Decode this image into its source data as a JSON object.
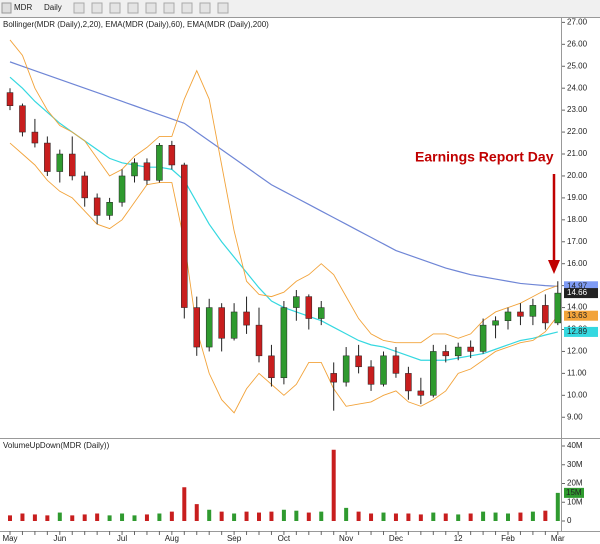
{
  "toolbar": {
    "symbol": "MDR",
    "interval": "Daily"
  },
  "chart_data": [
    {
      "type": "candlestick",
      "title": "Bollinger(MDR (Daily),2,20), EMA(MDR (Daily),60), EMA(MDR (Daily),200)",
      "annotation": "Earnings Report Day",
      "up_color": "#2f9a2f",
      "down_color": "#c81e1e",
      "open": [
        23.8,
        23.2,
        22.0,
        21.5,
        20.2,
        21.0,
        20.0,
        19.0,
        18.2,
        18.8,
        20.0,
        20.6,
        19.8,
        21.4,
        20.5,
        14.0,
        12.2,
        14.0,
        12.6,
        13.8,
        13.2,
        11.8,
        10.8,
        14.0,
        14.5,
        13.5,
        11.0,
        10.6,
        11.8,
        11.3,
        10.5,
        11.8,
        11.0,
        10.2,
        10.0,
        12.0,
        11.8,
        12.2,
        12.0,
        13.2,
        13.4,
        13.8,
        13.6,
        14.1,
        13.3
      ],
      "high": [
        24.0,
        23.3,
        22.6,
        21.8,
        21.2,
        21.8,
        20.2,
        19.2,
        19.0,
        20.3,
        20.8,
        20.8,
        21.5,
        21.6,
        20.6,
        14.5,
        14.4,
        14.2,
        14.2,
        14.5,
        14.0,
        12.3,
        14.3,
        14.8,
        14.6,
        14.3,
        11.5,
        12.2,
        12.3,
        11.6,
        12.0,
        12.2,
        11.3,
        10.8,
        12.3,
        12.3,
        12.4,
        12.5,
        13.5,
        13.6,
        14.0,
        14.2,
        14.4,
        14.6,
        15.2
      ],
      "low": [
        23.0,
        21.8,
        21.3,
        20.0,
        19.7,
        19.8,
        18.6,
        17.8,
        18.0,
        18.6,
        19.7,
        19.6,
        19.7,
        20.3,
        13.5,
        11.8,
        12.0,
        12.0,
        12.5,
        12.8,
        11.5,
        10.4,
        10.5,
        13.4,
        13.0,
        13.2,
        9.3,
        10.4,
        11.0,
        10.2,
        10.4,
        10.8,
        9.8,
        9.6,
        9.9,
        11.5,
        11.6,
        11.7,
        11.9,
        12.6,
        13.0,
        13.2,
        13.2,
        13.0,
        13.2
      ],
      "close": [
        23.2,
        22.0,
        21.5,
        20.2,
        21.0,
        20.0,
        19.0,
        18.2,
        18.8,
        20.0,
        20.6,
        19.8,
        21.4,
        20.5,
        14.0,
        12.2,
        14.0,
        12.6,
        13.8,
        13.2,
        11.8,
        10.8,
        14.0,
        14.5,
        13.5,
        14.0,
        10.6,
        11.8,
        11.3,
        10.5,
        11.8,
        11.0,
        10.2,
        10.0,
        12.0,
        11.8,
        12.2,
        12.0,
        13.2,
        13.4,
        13.8,
        13.6,
        14.1,
        13.3,
        14.66
      ],
      "series": [
        {
          "name": "EMA 200",
          "color": "#6f86d6",
          "values": [
            25.2,
            25.0,
            24.8,
            24.6,
            24.4,
            24.2,
            24.0,
            23.8,
            23.6,
            23.4,
            23.2,
            23.0,
            22.8,
            22.6,
            22.4,
            22.0,
            21.6,
            21.2,
            20.8,
            20.4,
            20.0,
            19.6,
            19.3,
            19.0,
            18.7,
            18.4,
            18.1,
            17.8,
            17.5,
            17.2,
            16.9,
            16.6,
            16.4,
            16.2,
            16.0,
            15.8,
            15.65,
            15.5,
            15.4,
            15.3,
            15.2,
            15.1,
            15.05,
            15.0,
            14.97
          ]
        },
        {
          "name": "EMA 60",
          "color": "#35d8e0",
          "values": [
            24.5,
            24.0,
            23.4,
            22.9,
            22.4,
            22.0,
            21.6,
            21.2,
            20.8,
            20.6,
            20.5,
            20.4,
            20.4,
            20.3,
            19.8,
            18.8,
            17.8,
            17.0,
            16.3,
            15.6,
            14.9,
            14.3,
            14.0,
            13.8,
            13.6,
            13.4,
            13.1,
            12.8,
            12.5,
            12.3,
            12.2,
            12.0,
            11.8,
            11.6,
            11.6,
            11.6,
            11.7,
            11.8,
            11.9,
            12.1,
            12.3,
            12.5,
            12.6,
            12.75,
            12.89
          ]
        },
        {
          "name": "Bollinger upper",
          "color": "#f2a33a",
          "values": [
            26.2,
            25.5,
            24.0,
            23.0,
            22.3,
            22.0,
            21.6,
            20.8,
            20.0,
            20.3,
            20.9,
            21.3,
            21.8,
            21.8,
            23.5,
            24.8,
            23.5,
            20.5,
            17.5,
            15.2,
            14.6,
            14.5,
            14.7,
            15.2,
            15.5,
            16.0,
            15.5,
            14.5,
            13.5,
            12.8,
            12.5,
            12.4,
            12.4,
            12.4,
            12.8,
            12.8,
            12.6,
            12.8,
            13.4,
            13.8,
            14.0,
            14.2,
            14.5,
            14.8,
            15.0
          ]
        },
        {
          "name": "Bollinger lower",
          "color": "#f2a33a",
          "values": [
            21.5,
            21.0,
            20.5,
            19.8,
            19.3,
            19.0,
            18.4,
            17.8,
            17.6,
            18.0,
            18.8,
            19.6,
            19.7,
            19.7,
            17.0,
            13.0,
            11.0,
            9.8,
            9.2,
            10.3,
            11.0,
            10.5,
            10.0,
            10.5,
            11.5,
            11.5,
            10.3,
            9.5,
            9.6,
            9.7,
            10.0,
            10.2,
            9.7,
            9.5,
            9.8,
            10.2,
            11.0,
            11.2,
            11.6,
            12.0,
            12.2,
            12.4,
            12.5,
            12.9,
            13.63
          ]
        }
      ],
      "ylim": [
        8.1,
        27.2
      ],
      "yticks": [
        {
          "value": 9,
          "label": "9.00"
        },
        {
          "value": 10,
          "label": "10.00"
        },
        {
          "value": 11,
          "label": "11.00"
        },
        {
          "value": 12,
          "label": "12.00"
        },
        {
          "value": 13,
          "label": "13.00"
        },
        {
          "value": 14,
          "label": "14.00"
        },
        {
          "value": 15,
          "label": "15.00"
        },
        {
          "value": 16,
          "label": "16.00"
        },
        {
          "value": 17,
          "label": "17.00"
        },
        {
          "value": 18,
          "label": "18.00"
        },
        {
          "value": 19,
          "label": "19.00"
        },
        {
          "value": 20,
          "label": "20.00"
        },
        {
          "value": 21,
          "label": "21.00"
        },
        {
          "value": 22,
          "label": "22.00"
        },
        {
          "value": 23,
          "label": "23.00"
        },
        {
          "value": 24,
          "label": "24.00"
        },
        {
          "value": 25,
          "label": "25.00"
        },
        {
          "value": 26,
          "label": "26.00"
        },
        {
          "value": 27,
          "label": "27.00"
        }
      ]
    },
    {
      "type": "bar",
      "title": "VolumeUpDown(MDR (Daily))",
      "categories": [
        "May",
        null,
        null,
        null,
        "Jun",
        null,
        null,
        null,
        null,
        "Jul",
        null,
        null,
        null,
        "Aug",
        null,
        null,
        null,
        null,
        "Sep",
        null,
        null,
        null,
        "Oct",
        null,
        null,
        null,
        null,
        "Nov",
        null,
        null,
        null,
        "Dec",
        null,
        null,
        null,
        null,
        "12",
        null,
        null,
        null,
        "Feb",
        null,
        null,
        null,
        "Mar"
      ],
      "values": [
        3000000,
        4000000,
        3500000,
        3000000,
        4500000,
        3000000,
        3500000,
        4000000,
        3000000,
        4000000,
        3000000,
        3500000,
        4000000,
        5000000,
        18000000,
        9000000,
        6000000,
        5000000,
        4000000,
        5000000,
        4500000,
        5000000,
        6000000,
        5500000,
        4500000,
        5000000,
        38000000,
        7000000,
        5000000,
        4000000,
        4500000,
        4000000,
        4000000,
        3500000,
        4500000,
        4000000,
        3500000,
        4000000,
        5000000,
        4500000,
        4000000,
        4500000,
        5000000,
        5500000,
        15000000
      ],
      "last_label": "15M",
      "ylim": [
        -4800000,
        43200000
      ],
      "yticks": [
        0,
        {
          "value": 10000000,
          "label": "10M"
        },
        {
          "value": 20000000,
          "label": "20M"
        },
        {
          "value": 30000000,
          "label": "30M"
        },
        {
          "value": 40000000,
          "label": "40M"
        }
      ]
    }
  ]
}
